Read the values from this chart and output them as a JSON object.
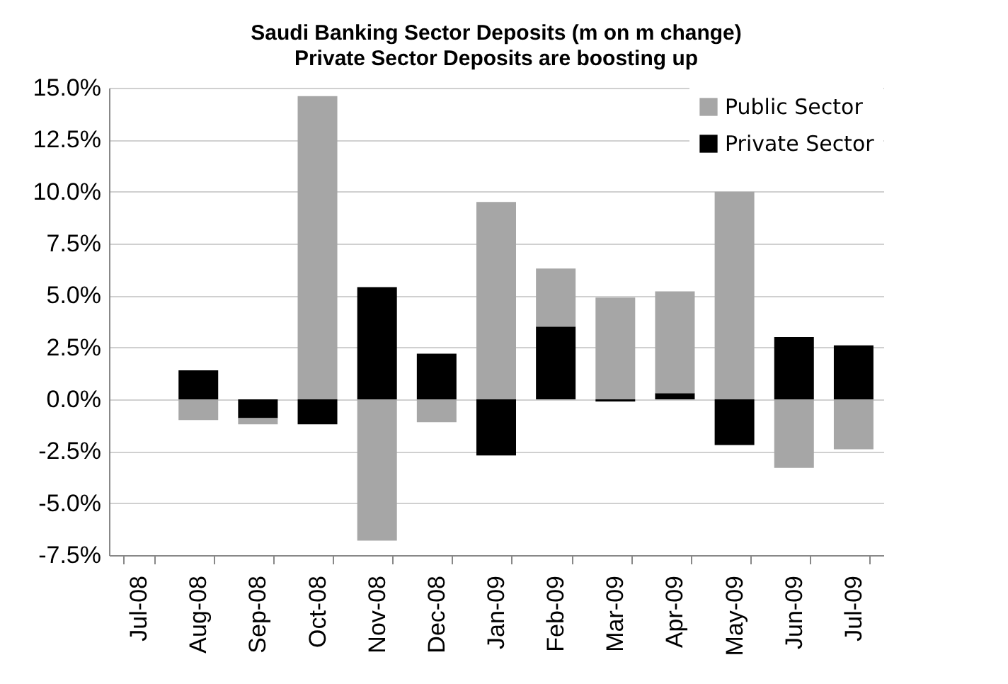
{
  "chart_data": {
    "type": "bar",
    "title": "Saudi  Banking Sector Deposits (m on m change)",
    "subtitle": "Private Sector Deposits are boosting up",
    "categories": [
      "Jul-08",
      "Aug-08",
      "Sep-08",
      "Oct-08",
      "Nov-08",
      "Dec-08",
      "Jan-09",
      "Feb-09",
      "Mar-09",
      "Apr-09",
      "May-09",
      "Jun-09",
      "Jul-09"
    ],
    "series": [
      {
        "name": "Private Sector",
        "color": "#000000",
        "values": [
          null,
          1.4,
          -0.9,
          -1.2,
          5.4,
          2.2,
          -2.7,
          3.5,
          -0.1,
          0.3,
          -2.2,
          3.0,
          2.6
        ]
      },
      {
        "name": "Public Sector",
        "color": "#a6a6a6",
        "values": [
          null,
          -1.0,
          -0.3,
          14.6,
          -6.8,
          -1.1,
          9.5,
          2.8,
          4.9,
          4.9,
          10.0,
          -3.3,
          -2.4
        ]
      }
    ],
    "stacked": true,
    "ylim": [
      -7.5,
      15
    ],
    "yticks": [
      {
        "value": -7.5,
        "label": "-7.5%"
      },
      {
        "value": -5,
        "label": "-5.0%"
      },
      {
        "value": -2.5,
        "label": "-2.5%"
      },
      {
        "value": 0,
        "label": "0.0%"
      },
      {
        "value": 2.5,
        "label": "2.5%"
      },
      {
        "value": 5,
        "label": "5.0%"
      },
      {
        "value": 7.5,
        "label": "7.5%"
      },
      {
        "value": 10,
        "label": "10.0%"
      },
      {
        "value": 12.5,
        "label": "12.5%"
      },
      {
        "value": 15,
        "label": "15.0%"
      }
    ],
    "grid": "y",
    "legend": "top right"
  }
}
